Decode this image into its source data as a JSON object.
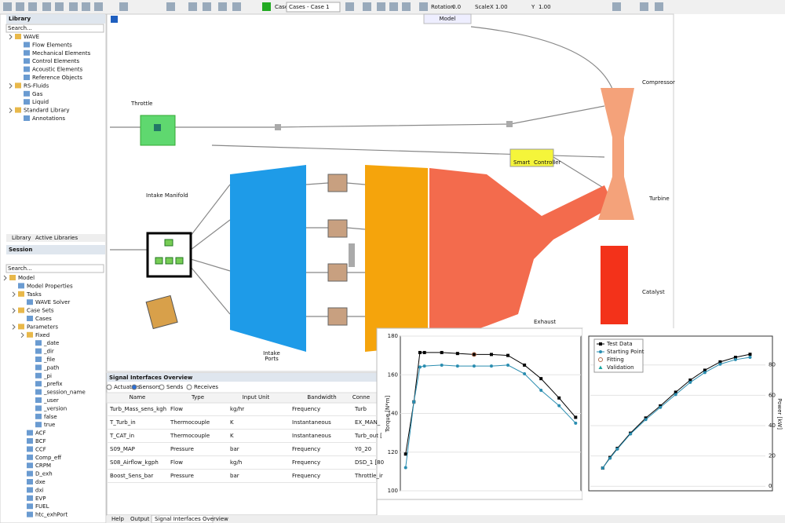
{
  "toolbar": {
    "case_label": "Case",
    "case_value": "Cases - Case 1",
    "rotation_label": "Rotation",
    "rotation_value": "0.0",
    "scale_label": "Scale",
    "x_label": "X",
    "x_value": "1.00",
    "y_label": "Y",
    "y_value": "1.00"
  },
  "canvas": {
    "tab": "Model",
    "throttle": "Throttle",
    "compressor": "Compressor",
    "turbine": "Turbine",
    "intake_manifold": "Intake Manifold",
    "catalyst": "Catalyst",
    "intake_ports": [
      "Intake",
      "Ports"
    ],
    "exhaust": "Exhaust",
    "controller": [
      "Smart",
      "Controller"
    ]
  },
  "library": {
    "title": "Library",
    "search": "Search...",
    "tree": [
      {
        "label": "WAVE",
        "children": [
          {
            "label": "Flow Elements"
          },
          {
            "label": "Mechanical Elements"
          },
          {
            "label": "Control Elements"
          },
          {
            "label": "Acoustic Elements"
          },
          {
            "label": "Reference Objects"
          }
        ]
      },
      {
        "label": "RS-Fluids",
        "children": [
          {
            "label": "Gas"
          },
          {
            "label": "Liquid"
          }
        ]
      },
      {
        "label": "Standard Library",
        "children": [
          {
            "label": "Annotations"
          }
        ]
      }
    ],
    "tabs": [
      "Library",
      "Active Libraries"
    ]
  },
  "session": {
    "title": "Session",
    "search": "Search...",
    "tree": [
      {
        "label": "Model",
        "children": [
          {
            "label": "Model Properties"
          },
          {
            "label": "Tasks",
            "children": [
              {
                "label": "WAVE Solver"
              }
            ]
          },
          {
            "label": "Case Sets",
            "children": [
              {
                "label": "Cases"
              }
            ]
          },
          {
            "label": "Parameters",
            "children": [
              {
                "label": "Fixed",
                "children": [
                  {
                    "label": "_date"
                  },
                  {
                    "label": "_dir"
                  },
                  {
                    "label": "_file"
                  },
                  {
                    "label": "_path"
                  },
                  {
                    "label": "_pi"
                  },
                  {
                    "label": "_prefix"
                  },
                  {
                    "label": "_session_name"
                  },
                  {
                    "label": "_user"
                  },
                  {
                    "label": "_version"
                  },
                  {
                    "label": "false"
                  },
                  {
                    "label": "true"
                  }
                ]
              },
              {
                "label": "ACF"
              },
              {
                "label": "BCF"
              },
              {
                "label": "CCF"
              },
              {
                "label": "Comp_eff"
              },
              {
                "label": "CRPM"
              },
              {
                "label": "D_exh"
              },
              {
                "label": "dxe"
              },
              {
                "label": "dxi"
              },
              {
                "label": "EVP"
              },
              {
                "label": "FUEL"
              },
              {
                "label": "htc_exhPort"
              }
            ]
          }
        ]
      }
    ]
  },
  "signal_table": {
    "title": "Signal Interfaces Overview",
    "filters": [
      "Actuators",
      "Sensors",
      "Sends",
      "Receives"
    ],
    "selected_filter": "Sensors",
    "columns": [
      "Name",
      "Type",
      "Input Unit",
      "Bandwidth",
      "Conne"
    ],
    "rows": [
      [
        "Turb_Mass_sens_kgh",
        "Flow",
        "kg/hr",
        "Frequency",
        "Turb"
      ],
      [
        "T_Turb_in",
        "Thermocouple",
        "K",
        "Instantaneous",
        "EX_MAN_"
      ],
      [
        "T_CAT_in",
        "Thermocouple",
        "K",
        "Instantaneous",
        "Turb_out ["
      ],
      [
        "S09_MAP",
        "Pressure",
        "bar",
        "Frequency",
        "Y0_20"
      ],
      [
        "S08_Airflow_kgph",
        "Flow",
        "kg/h",
        "Frequency",
        "DSD_1 [80"
      ],
      [
        "Boost_Sens_bar",
        "Pressure",
        "bar",
        "Frequency",
        "Throttle_ir"
      ]
    ]
  },
  "bottom_tabs": [
    "Help",
    "Output",
    "Signal Interfaces Overview"
  ],
  "torque_plot": {
    "ylabel": "Torque [N*m]",
    "ylim": [
      100,
      180
    ],
    "yticks": [
      100,
      120,
      140,
      160,
      180
    ],
    "xlim": [
      0,
      240
    ],
    "grid": true,
    "series": [
      {
        "color": "#000000",
        "marker": "square",
        "x": [
          7,
          18,
          26,
          32,
          55,
          76,
          98,
          121,
          143,
          165,
          187,
          211,
          233
        ],
        "values": [
          119,
          146,
          171.5,
          171.5,
          171.5,
          171,
          170.5,
          170.5,
          170,
          165,
          158,
          148,
          138
        ]
      },
      {
        "color": "#2a8db0",
        "marker": "circle",
        "x": [
          7,
          18,
          26,
          32,
          55,
          76,
          98,
          121,
          143,
          165,
          187,
          211,
          233
        ],
        "values": [
          112,
          146,
          164,
          164.5,
          165,
          164.5,
          164.5,
          164.5,
          165,
          160.5,
          152,
          144,
          135
        ]
      },
      {
        "color": "#b06a4a",
        "marker": "open-circle",
        "x": [
          98
        ],
        "values": [
          170.5
        ]
      }
    ]
  },
  "power_plot": {
    "ylabel": "Power [kW]",
    "ylim": [
      -3,
      99
    ],
    "yticks": [
      0,
      20,
      40,
      60,
      80
    ],
    "xlim": [
      0,
      240
    ],
    "grid": true,
    "series": [
      {
        "color": "#000000",
        "marker": "square",
        "x": [
          17,
          27,
          37,
          55,
          76,
          96,
          117,
          137,
          157,
          178,
          199,
          219
        ],
        "values": [
          12,
          19,
          25,
          35,
          45,
          53,
          62,
          70,
          76.5,
          82,
          85,
          87
        ]
      },
      {
        "color": "#2a8db0",
        "marker": "circle",
        "x": [
          17,
          27,
          37,
          55,
          76,
          96,
          117,
          137,
          157,
          178,
          199,
          219
        ],
        "values": [
          12,
          18.5,
          24.5,
          34.5,
          44,
          52,
          60.5,
          68.5,
          75,
          80.5,
          83.5,
          85
        ]
      }
    ],
    "legend": [
      {
        "name": "Test Data",
        "color": "#000000",
        "marker": "square"
      },
      {
        "name": "Starting Point",
        "color": "#2a8db0",
        "marker": "circle"
      },
      {
        "name": "Fitting",
        "color": "#b06a4a",
        "marker": "open-circle"
      },
      {
        "name": "Validation",
        "color": "#1aa5a0",
        "marker": "triangle"
      }
    ]
  }
}
